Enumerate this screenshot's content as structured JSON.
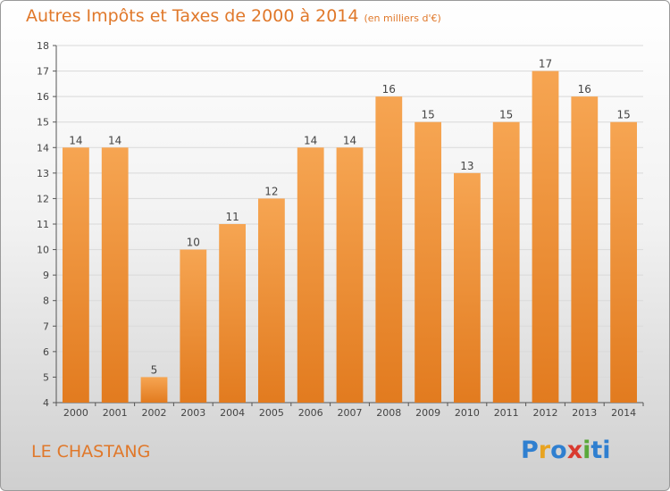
{
  "header": {
    "title": "Autres Impôts et Taxes de 2000 à 2014",
    "subtitle": "(en milliers d'€)"
  },
  "footer": {
    "place": "LE CHASTANG",
    "logo": [
      "P",
      "r",
      "o",
      "x",
      "i",
      "ti"
    ]
  },
  "colors": {
    "bar_light": "#f6a552",
    "bar_dark": "#e27b1f",
    "title": "#e0782a",
    "grid": "#d9d9d9"
  },
  "chart_data": {
    "type": "bar",
    "categories": [
      "2000",
      "2001",
      "2002",
      "2003",
      "2004",
      "2005",
      "2006",
      "2007",
      "2008",
      "2009",
      "2010",
      "2011",
      "2012",
      "2013",
      "2014"
    ],
    "values": [
      14,
      14,
      5,
      10,
      11,
      12,
      14,
      14,
      16,
      15,
      13,
      15,
      17,
      16,
      15
    ],
    "ylim": [
      4,
      18
    ],
    "yticks": [
      4,
      5,
      6,
      7,
      8,
      9,
      10,
      11,
      12,
      13,
      14,
      15,
      16,
      17,
      18
    ],
    "grid": true,
    "data_labels": true
  }
}
